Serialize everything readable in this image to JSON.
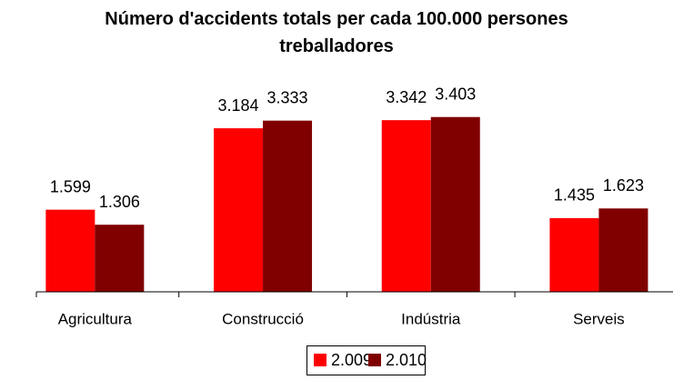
{
  "chart_data": {
    "type": "bar",
    "title": "Número d'accidents totals per cada 100.000 persones treballadores",
    "categories": [
      "Agricultura",
      "Construcció",
      "Indústria",
      "Serveis"
    ],
    "series": [
      {
        "name": "2.009",
        "color": "#ff0000",
        "values": [
          1599,
          3184,
          3342,
          1435
        ],
        "value_labels": [
          "1.599",
          "3.184",
          "3.342",
          "1.435"
        ]
      },
      {
        "name": "2.010",
        "color": "#800000",
        "values": [
          1306,
          3333,
          3403,
          1623
        ],
        "value_labels": [
          "1.306",
          "3.333",
          "3.403",
          "1.623"
        ]
      }
    ],
    "ylim": [
      0,
      4000
    ],
    "legend": "bottom"
  }
}
